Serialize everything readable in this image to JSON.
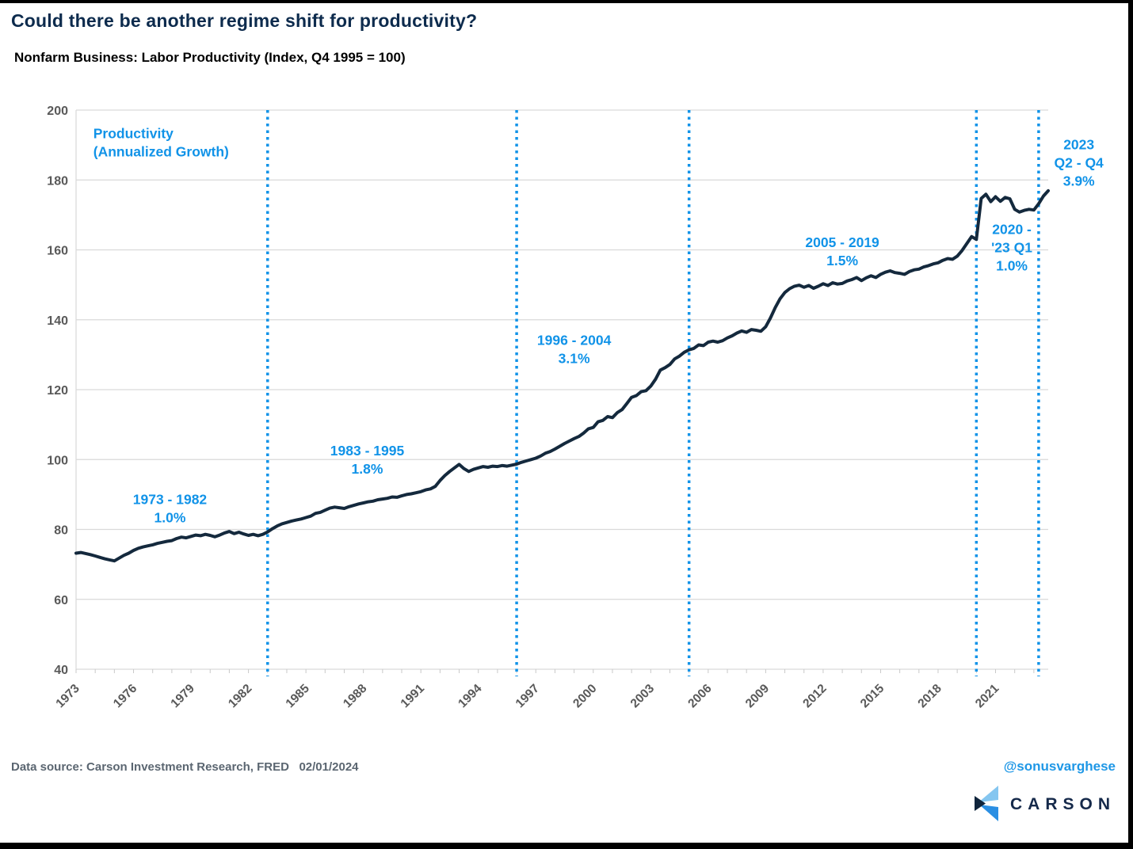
{
  "header": {
    "title": "Could there be another regime shift for productivity?",
    "subtitle": "Nonfarm Business: Labor Productivity (Index, Q4 1995 = 100)"
  },
  "footer": {
    "source": "Data source: Carson Investment Research, FRED   02/01/2024",
    "handle": "@sonusvarghese",
    "logo_text": "CARSON"
  },
  "colors": {
    "title_navy": "#0d2b4d",
    "line_navy": "#14293d",
    "accent_blue": "#1193e8",
    "grid_gray": "#d9d9d9",
    "axis_label_gray": "#595959",
    "footer_gray": "#5b6671",
    "logo_light_blue": "#85c6f0",
    "logo_mid_blue": "#2b8fe3",
    "logo_dark_navy": "#10253c"
  },
  "chart_data": {
    "type": "line",
    "title": "Could there be another regime shift for productivity?",
    "subtitle": "Nonfarm Business: Labor Productivity (Index, Q4 1995 = 100)",
    "xlabel": "",
    "ylabel": "",
    "xlim": [
      1973,
      2023.75
    ],
    "ylim": [
      40,
      200
    ],
    "yticks": [
      40,
      60,
      80,
      100,
      120,
      140,
      160,
      180,
      200
    ],
    "xtick_labels": [
      1973,
      1976,
      1979,
      1982,
      1985,
      1988,
      1991,
      1994,
      1997,
      2000,
      2003,
      2006,
      2009,
      2012,
      2015,
      2018,
      2021
    ],
    "grid": "horizontal",
    "legend": "none",
    "regime_boundaries": [
      1983,
      1996,
      2005,
      2020,
      2023.25
    ],
    "series": [
      {
        "name": "Labor Productivity Index (Q4 1995 = 100)",
        "frequency": "quarterly",
        "start_year": 1973,
        "values": [
          73.2,
          73.4,
          73.1,
          72.8,
          72.4,
          72.0,
          71.6,
          71.3,
          71.0,
          71.8,
          72.6,
          73.2,
          74.0,
          74.6,
          75.0,
          75.3,
          75.6,
          76.0,
          76.3,
          76.6,
          76.8,
          77.4,
          77.8,
          77.6,
          78.0,
          78.4,
          78.2,
          78.6,
          78.3,
          77.9,
          78.4,
          79.0,
          79.4,
          78.8,
          79.2,
          78.7,
          78.3,
          78.6,
          78.2,
          78.6,
          79.3,
          80.2,
          81.0,
          81.6,
          82.0,
          82.4,
          82.7,
          83.0,
          83.4,
          83.8,
          84.6,
          84.9,
          85.5,
          86.1,
          86.4,
          86.2,
          86.0,
          86.5,
          86.9,
          87.3,
          87.6,
          87.9,
          88.1,
          88.5,
          88.7,
          88.9,
          89.3,
          89.2,
          89.6,
          90.0,
          90.2,
          90.5,
          90.8,
          91.3,
          91.6,
          92.3,
          94.0,
          95.4,
          96.6,
          97.6,
          98.6,
          97.4,
          96.6,
          97.2,
          97.6,
          98.0,
          97.8,
          98.1,
          98.0,
          98.3,
          98.1,
          98.4,
          98.7,
          99.2,
          99.6,
          100.0,
          100.4,
          101.0,
          101.8,
          102.3,
          103.0,
          103.8,
          104.6,
          105.3,
          106.0,
          106.6,
          107.6,
          108.8,
          109.2,
          110.8,
          111.2,
          112.3,
          112.0,
          113.4,
          114.3,
          116.0,
          117.8,
          118.3,
          119.4,
          119.7,
          121.0,
          123.0,
          125.6,
          126.3,
          127.2,
          128.8,
          129.6,
          130.7,
          131.4,
          131.8,
          132.8,
          132.6,
          133.6,
          133.9,
          133.6,
          134.0,
          134.8,
          135.4,
          136.2,
          136.8,
          136.4,
          137.2,
          137.0,
          136.7,
          138.0,
          140.5,
          143.5,
          146.0,
          147.8,
          148.9,
          149.6,
          149.9,
          149.3,
          149.8,
          149.0,
          149.6,
          150.3,
          149.8,
          150.6,
          150.2,
          150.4,
          151.1,
          151.5,
          152.1,
          151.2,
          152.0,
          152.6,
          152.1,
          153.0,
          153.6,
          154.0,
          153.5,
          153.3,
          153.0,
          153.8,
          154.3,
          154.5,
          155.1,
          155.5,
          156.0,
          156.3,
          157.0,
          157.5,
          157.3,
          158.2,
          159.8,
          161.8,
          163.8,
          163.0,
          174.7,
          175.9,
          173.8,
          175.2,
          173.9,
          175.0,
          174.6,
          171.6,
          170.8,
          171.3,
          171.6,
          171.4,
          173.2,
          175.4,
          176.9
        ]
      }
    ],
    "annotations": [
      {
        "name": "series-label",
        "lines": [
          "Productivity",
          "(Annualized Growth)"
        ],
        "x": 1973.9,
        "y": 192.0,
        "anchor": "start"
      },
      {
        "name": "regime-1973-1982",
        "lines": [
          "1973 - 1982",
          "1.0%"
        ],
        "x": 1977.9,
        "y": 87.3,
        "anchor": "middle"
      },
      {
        "name": "regime-1983-1995",
        "lines": [
          "1983 - 1995",
          "1.8%"
        ],
        "x": 1988.2,
        "y": 101.2,
        "anchor": "middle"
      },
      {
        "name": "regime-1996-2004",
        "lines": [
          "1996 - 2004",
          "3.1%"
        ],
        "x": 1999.0,
        "y": 132.8,
        "anchor": "middle"
      },
      {
        "name": "regime-2005-2019",
        "lines": [
          "2005 - 2019",
          "1.5%"
        ],
        "x": 2013.0,
        "y": 160.8,
        "anchor": "middle"
      },
      {
        "name": "regime-2020-23q1",
        "lines": [
          "2020 -",
          "'23 Q1",
          "1.0%"
        ],
        "x": 2021.85,
        "y": 164.5,
        "anchor": "middle"
      },
      {
        "name": "regime-2023-q2q4",
        "lines": [
          "2023",
          "Q2 - Q4",
          "3.9%"
        ],
        "x": 2025.35,
        "y": 188.8,
        "anchor": "middle"
      }
    ]
  }
}
